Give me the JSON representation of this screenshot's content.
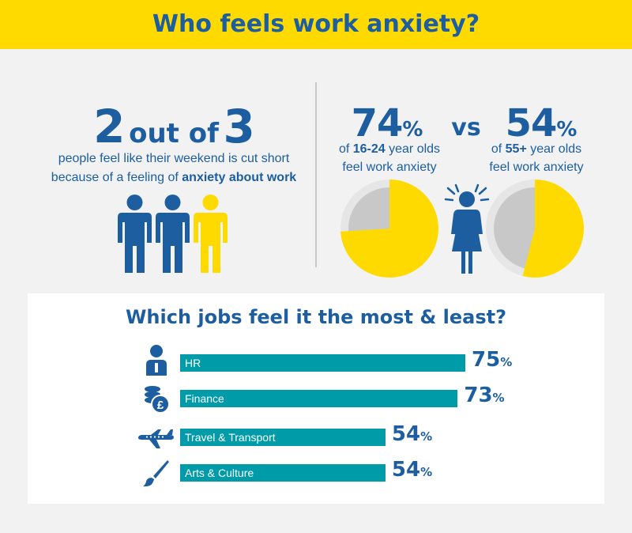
{
  "title": "Who feels work anxiety?",
  "weekend_stat": {
    "num_a": "2",
    "mid": "out of",
    "num_b": "3",
    "line1": "people feel like their weekend is cut short",
    "line2_prefix": "because of a feeling of",
    "line2_bold": "anxiety about work",
    "share": 0.667
  },
  "age_comparison": {
    "vs_label": "vs",
    "left": {
      "value": "74",
      "sym": "%",
      "pre": "of",
      "bold": "16-24",
      "post": "year olds",
      "line2": "feel work anxiety",
      "fraction": 0.74
    },
    "right": {
      "value": "54",
      "sym": "%",
      "pre": "of",
      "bold": "55+",
      "post": "year olds",
      "line2": "feel work anxiety",
      "fraction": 0.54
    }
  },
  "colors": {
    "banner": "#ffda00",
    "navy": "#1c5ea0",
    "yellow": "#ffda00",
    "teal": "#009ba9",
    "grey": "#c8c8c8"
  },
  "jobs_title": "Which jobs feel it the most & least?",
  "chart_data": {
    "type": "bar",
    "orientation": "horizontal",
    "title": "Which jobs feel it the most & least?",
    "categories": [
      "HR",
      "Finance",
      "Travel & Transport",
      "Arts & Culture"
    ],
    "values": [
      75,
      73,
      54,
      54
    ],
    "unit": "%",
    "icons": [
      "person-icon",
      "coins-pound-icon",
      "airplane-icon",
      "paintbrush-icon"
    ]
  }
}
